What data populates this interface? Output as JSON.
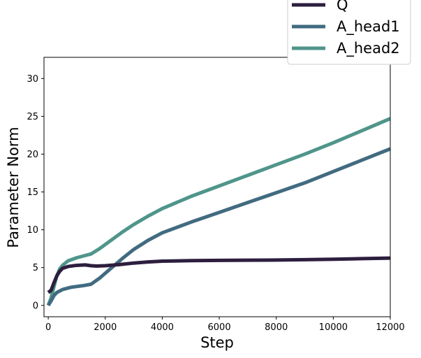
{
  "chart_data": {
    "type": "line",
    "title": "",
    "xlabel": "Step",
    "ylabel": "Parameter Norm",
    "xlim": [
      -150,
      12000
    ],
    "ylim": [
      -1.5,
      32.8
    ],
    "xticks": [
      0,
      2000,
      4000,
      6000,
      8000,
      10000,
      12000
    ],
    "yticks": [
      0,
      5,
      10,
      15,
      20,
      25,
      30
    ],
    "grid": false,
    "legend_position": "top-right",
    "series": [
      {
        "name": "Q",
        "color": "#2d1e3e",
        "x": [
          0,
          100,
          200,
          300,
          400,
          500,
          700,
          1000,
          1300,
          1500,
          1700,
          2000,
          2500,
          3000,
          3500,
          4000,
          5000,
          6000,
          7000,
          8000,
          9000,
          10000,
          11000,
          12000
        ],
        "y": [
          1.7,
          2.0,
          3.0,
          3.9,
          4.5,
          4.9,
          5.15,
          5.3,
          5.35,
          5.25,
          5.2,
          5.25,
          5.4,
          5.6,
          5.75,
          5.85,
          5.92,
          5.95,
          5.98,
          6.0,
          6.05,
          6.1,
          6.18,
          6.25
        ]
      },
      {
        "name": "A_head1",
        "color": "#416b80",
        "x": [
          0,
          100,
          200,
          300,
          500,
          800,
          1200,
          1500,
          1800,
          2200,
          2600,
          3000,
          3500,
          4000,
          5000,
          6000,
          7000,
          8000,
          9000,
          10000,
          11000,
          12000
        ],
        "y": [
          0.0,
          0.6,
          1.3,
          1.7,
          2.1,
          2.4,
          2.6,
          2.8,
          3.6,
          4.9,
          6.2,
          7.4,
          8.6,
          9.6,
          11.0,
          12.3,
          13.6,
          14.9,
          16.2,
          17.7,
          19.2,
          20.7
        ]
      },
      {
        "name": "A_head2",
        "color": "#4f958b",
        "x": [
          0,
          100,
          200,
          300,
          400,
          500,
          700,
          1000,
          1300,
          1500,
          1800,
          2200,
          2600,
          3000,
          3500,
          4000,
          5000,
          6000,
          7000,
          8000,
          9000,
          10000,
          11000,
          12000
        ],
        "y": [
          0.0,
          1.0,
          2.5,
          3.9,
          4.8,
          5.3,
          5.9,
          6.3,
          6.6,
          6.8,
          7.5,
          8.6,
          9.7,
          10.7,
          11.8,
          12.8,
          14.4,
          15.8,
          17.2,
          18.6,
          20.0,
          21.5,
          23.1,
          24.7
        ]
      }
    ]
  }
}
